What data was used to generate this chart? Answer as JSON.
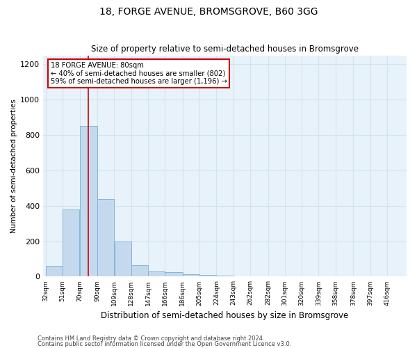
{
  "title": "18, FORGE AVENUE, BROMSGROVE, B60 3GG",
  "subtitle": "Size of property relative to semi-detached houses in Bromsgrove",
  "xlabel": "Distribution of semi-detached houses by size in Bromsgrove",
  "ylabel": "Number of semi-detached properties",
  "footnote1": "Contains HM Land Registry data © Crown copyright and database right 2024.",
  "footnote2": "Contains public sector information licensed under the Open Government Licence v3.0.",
  "categories": [
    "32sqm",
    "51sqm",
    "70sqm",
    "90sqm",
    "109sqm",
    "128sqm",
    "147sqm",
    "166sqm",
    "186sqm",
    "205sqm",
    "224sqm",
    "243sqm",
    "262sqm",
    "282sqm",
    "301sqm",
    "320sqm",
    "339sqm",
    "358sqm",
    "378sqm",
    "397sqm",
    "416sqm"
  ],
  "values": [
    60,
    380,
    850,
    440,
    200,
    65,
    30,
    25,
    15,
    10,
    5,
    2,
    1,
    0,
    0,
    0,
    0,
    0,
    0,
    0,
    0
  ],
  "bar_color": "#c5d9ee",
  "bar_edge_color": "#7aafd4",
  "grid_color": "#d0e4f0",
  "background_color": "#e8f2fa",
  "property_line_x": 80,
  "annotation_text1": "18 FORGE AVENUE: 80sqm",
  "annotation_text2": "← 40% of semi-detached houses are smaller (802)",
  "annotation_text3": "59% of semi-detached houses are larger (1,196) →",
  "annotation_box_color": "#cc0000",
  "ylim": [
    0,
    1250
  ],
  "yticks": [
    0,
    200,
    400,
    600,
    800,
    1000,
    1200
  ],
  "bin_edges": [
    32,
    51,
    70,
    90,
    109,
    128,
    147,
    166,
    186,
    205,
    224,
    243,
    262,
    282,
    301,
    320,
    339,
    358,
    378,
    397,
    416,
    435
  ]
}
